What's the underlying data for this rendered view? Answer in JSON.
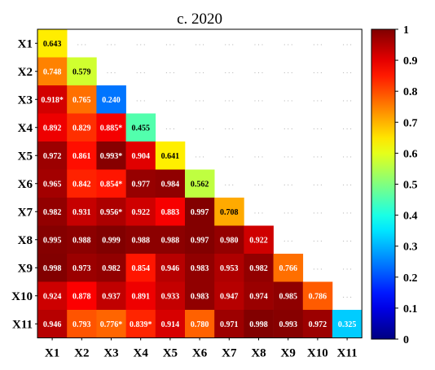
{
  "chart_data": {
    "type": "heatmap",
    "title": "c. 2020",
    "variables": [
      "X1",
      "X2",
      "X3",
      "X4",
      "X5",
      "X6",
      "X7",
      "X8",
      "X9",
      "X10",
      "X11"
    ],
    "values": [
      [
        0.643
      ],
      [
        0.748,
        0.579
      ],
      [
        0.918,
        0.765,
        0.24
      ],
      [
        0.892,
        0.829,
        0.885,
        0.455
      ],
      [
        0.972,
        0.861,
        0.993,
        0.904,
        0.641
      ],
      [
        0.965,
        0.842,
        0.854,
        0.977,
        0.984,
        0.562
      ],
      [
        0.982,
        0.931,
        0.956,
        0.922,
        0.883,
        0.997,
        0.708
      ],
      [
        0.995,
        0.988,
        0.999,
        0.988,
        0.988,
        0.997,
        0.98,
        0.922
      ],
      [
        0.998,
        0.973,
        0.982,
        0.854,
        0.946,
        0.983,
        0.953,
        0.982,
        0.766
      ],
      [
        0.924,
        0.878,
        0.937,
        0.891,
        0.933,
        0.983,
        0.947,
        0.974,
        0.985,
        0.786
      ],
      [
        0.946,
        0.793,
        0.776,
        0.839,
        0.914,
        0.78,
        0.971,
        0.998,
        0.993,
        0.972,
        0.325
      ]
    ],
    "labels": [
      [
        "0.643"
      ],
      [
        "0.748",
        "0.579"
      ],
      [
        "0.918*",
        "0.765",
        "0.240"
      ],
      [
        "0.892",
        "0.829",
        "0.885*",
        "0.455"
      ],
      [
        "0.972",
        "0.861",
        "0.993*",
        "0.904",
        "0.641"
      ],
      [
        "0.965",
        "0.842",
        "0.854*",
        "0.977",
        "0.984",
        "0.562"
      ],
      [
        "0.982",
        "0.931",
        "0.956*",
        "0.922",
        "0.883",
        "0.997",
        "0.708"
      ],
      [
        "0.995",
        "0.988",
        "0.999",
        "0.988",
        "0.988",
        "0.997",
        "0.980",
        "0.922"
      ],
      [
        "0.998",
        "0.973",
        "0.982",
        "0.854",
        "0.946",
        "0.983",
        "0.953",
        "0.982",
        "0.766"
      ],
      [
        "0.924",
        "0.878",
        "0.937",
        "0.891",
        "0.933",
        "0.983",
        "0.947",
        "0.974",
        "0.985",
        "0.786"
      ],
      [
        "0.946",
        "0.793",
        "0.776*",
        "0.839*",
        "0.914",
        "0.780",
        "0.971",
        "0.998",
        "0.993",
        "0.972",
        "0.325"
      ]
    ],
    "empty_marker": ". . .",
    "colorbar": {
      "colormap": "jet",
      "range": [
        0,
        1
      ],
      "ticks": [
        "0",
        "0.1",
        "0.2",
        "0.3",
        "0.4",
        "0.5",
        "0.6",
        "0.7",
        "0.8",
        "0.9",
        "1"
      ]
    }
  }
}
